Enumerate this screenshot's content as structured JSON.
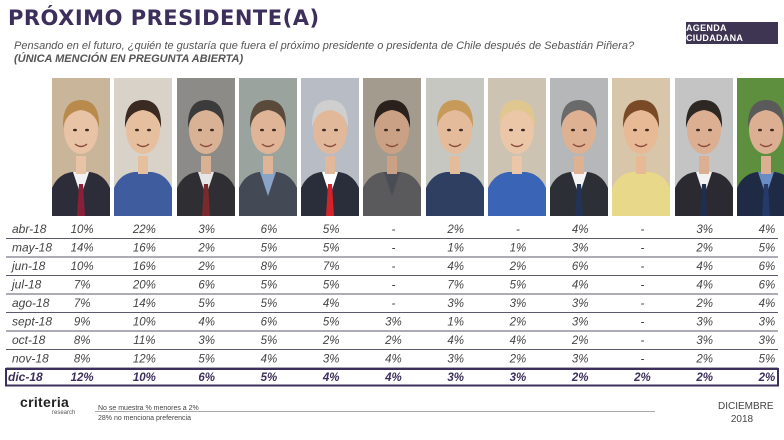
{
  "header": {
    "title": "PRÓXIMO PRESIDENTE(A)",
    "subtitle": "Pensando en el futuro, ¿quién te gustaría que fuera el próximo presidente o presidenta de Chile después de Sebastián Piñera?",
    "note": "(ÚNICA MENCIÓN EN PREGUNTA ABIERTA)",
    "brand": "AGENDA CIUDADANA"
  },
  "photos": [
    {
      "bg": "#c9b59a",
      "skin": "#e8c3a5",
      "hair": "#b88a4c",
      "suit": "#2d2d3a",
      "shirt": "#f2f2f2",
      "tie": "#8a1f3a"
    },
    {
      "bg": "#d8d2c8",
      "skin": "#e5bf9e",
      "hair": "#3a2a22",
      "suit": "#3f5d9e",
      "shirt": "#3f5d9e",
      "tie": ""
    },
    {
      "bg": "#8c8b88",
      "skin": "#d9b296",
      "hair": "#3b3b3b",
      "suit": "#2e2e33",
      "shirt": "#e6e6e6",
      "tie": "#7a2a2a"
    },
    {
      "bg": "#9aa39e",
      "skin": "#e0b597",
      "hair": "#5a4a3c",
      "suit": "#444a55",
      "shirt": "#8aa4c8",
      "tie": ""
    },
    {
      "bg": "#b8bcc4",
      "skin": "#e2b89a",
      "hair": "#cfcfcf",
      "suit": "#2a2d3a",
      "shirt": "#ffffff",
      "tie": "#d2232a"
    },
    {
      "bg": "#a49b8f",
      "skin": "#caa184",
      "hair": "#2a211c",
      "suit": "#5a5a5c",
      "shirt": "#4a4d55",
      "tie": ""
    },
    {
      "bg": "#c7c7c2",
      "skin": "#e4bc9c",
      "hair": "#c89a5a",
      "suit": "#2f3f62",
      "shirt": "#2f3f62",
      "tie": ""
    },
    {
      "bg": "#cdc3b2",
      "skin": "#ebc7a8",
      "hair": "#e0c78f",
      "suit": "#3a64b6",
      "shirt": "#3a64b6",
      "tie": ""
    },
    {
      "bg": "#b5b7b8",
      "skin": "#ddb192",
      "hair": "#6a6a6a",
      "suit": "#2c2f35",
      "shirt": "#f4f4f4",
      "tie": "#223355"
    },
    {
      "bg": "#d8c6aa",
      "skin": "#e7b995",
      "hair": "#7a4a26",
      "suit": "#e8d88a",
      "shirt": "#e8d88a",
      "tie": ""
    },
    {
      "bg": "#c4c4c4",
      "skin": "#dcae92",
      "hair": "#2e2824",
      "suit": "#2a2a30",
      "shirt": "#f2f2f2",
      "tie": "#1f2e4a"
    },
    {
      "bg": "#5d8f3f",
      "skin": "#dcae92",
      "hair": "#5a5a5a",
      "suit": "#1f2a44",
      "shirt": "#6a8cc4",
      "tie": "#233a6a"
    }
  ],
  "chart_data": {
    "type": "table",
    "title": "PRÓXIMO PRESIDENTE(A)",
    "rows": [
      {
        "label": "abr-18",
        "values": [
          "10%",
          "22%",
          "3%",
          "6%",
          "5%",
          "-",
          "2%",
          "-",
          "4%",
          "-",
          "3%",
          "4%"
        ]
      },
      {
        "label": "may-18",
        "values": [
          "14%",
          "16%",
          "2%",
          "5%",
          "5%",
          "-",
          "1%",
          "1%",
          "3%",
          "-",
          "2%",
          "5%"
        ]
      },
      {
        "label": "jun-18",
        "values": [
          "10%",
          "16%",
          "2%",
          "8%",
          "7%",
          "-",
          "4%",
          "2%",
          "6%",
          "-",
          "4%",
          "6%"
        ]
      },
      {
        "label": "jul-18",
        "values": [
          "7%",
          "20%",
          "6%",
          "5%",
          "5%",
          "-",
          "7%",
          "5%",
          "4%",
          "-",
          "4%",
          "6%"
        ]
      },
      {
        "label": "ago-18",
        "values": [
          "7%",
          "14%",
          "5%",
          "5%",
          "4%",
          "-",
          "3%",
          "3%",
          "3%",
          "-",
          "2%",
          "4%"
        ]
      },
      {
        "label": "sept-18",
        "values": [
          "9%",
          "10%",
          "4%",
          "6%",
          "5%",
          "3%",
          "1%",
          "2%",
          "3%",
          "-",
          "3%",
          "3%"
        ]
      },
      {
        "label": "oct-18",
        "values": [
          "8%",
          "11%",
          "3%",
          "5%",
          "2%",
          "2%",
          "4%",
          "4%",
          "2%",
          "-",
          "3%",
          "3%"
        ]
      },
      {
        "label": "nov-18",
        "values": [
          "8%",
          "12%",
          "5%",
          "4%",
          "3%",
          "4%",
          "3%",
          "2%",
          "3%",
          "-",
          "2%",
          "5%"
        ]
      },
      {
        "label": "dic-18",
        "values": [
          "12%",
          "10%",
          "6%",
          "5%",
          "4%",
          "4%",
          "3%",
          "3%",
          "2%",
          "2%",
          "2%",
          "2%"
        ]
      }
    ],
    "highlight_row": "dic-18"
  },
  "footer": {
    "logo": "criteria",
    "logo_sub": "research",
    "note1": "No se muestra % menores a 2%",
    "note2": "28% no menciona preferencia",
    "month": "DICIEMBRE",
    "year": "2018"
  }
}
